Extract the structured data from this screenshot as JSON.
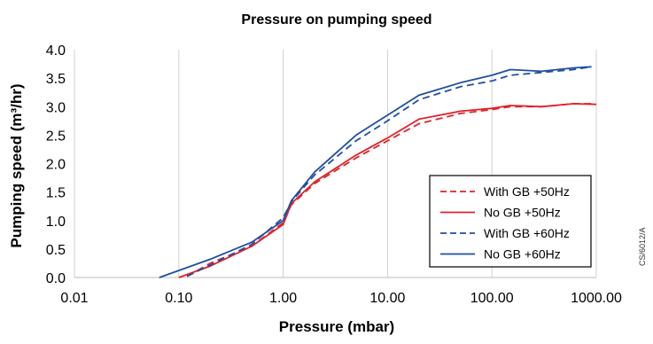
{
  "chart_data": {
    "type": "line",
    "title": "Pressure on pumping speed",
    "xlabel": "Pressure (mbar)",
    "ylabel": "Pumping speed (m³/hr)",
    "x_scale": "log",
    "xlim": [
      0.01,
      1000
    ],
    "ylim": [
      0,
      4
    ],
    "x_ticks": [
      "0.01",
      "0.10",
      "1.00",
      "10.00",
      "100.00",
      "1000.00"
    ],
    "y_ticks": [
      "0.0",
      "0.5",
      "1.0",
      "1.5",
      "2.0",
      "2.5",
      "3.0",
      "3.5",
      "4.0"
    ],
    "grid": "vertical",
    "legend_position": "right",
    "series": [
      {
        "name": "With GB +50Hz",
        "color": "#e0222a",
        "dash": "dashed",
        "points": [
          [
            0.12,
            0.02
          ],
          [
            0.2,
            0.25
          ],
          [
            0.5,
            0.55
          ],
          [
            1.0,
            0.96
          ],
          [
            1.2,
            1.28
          ],
          [
            2,
            1.65
          ],
          [
            5,
            2.1
          ],
          [
            10,
            2.4
          ],
          [
            20,
            2.7
          ],
          [
            50,
            2.88
          ],
          [
            100,
            2.95
          ],
          [
            150,
            3.0
          ],
          [
            300,
            3.0
          ],
          [
            600,
            3.05
          ],
          [
            900,
            3.05
          ]
        ]
      },
      {
        "name": "No GB +50Hz",
        "color": "#e0222a",
        "dash": "solid",
        "points": [
          [
            0.1,
            0.0
          ],
          [
            0.2,
            0.2
          ],
          [
            0.5,
            0.55
          ],
          [
            1.0,
            0.93
          ],
          [
            1.2,
            1.3
          ],
          [
            2,
            1.68
          ],
          [
            5,
            2.15
          ],
          [
            10,
            2.45
          ],
          [
            20,
            2.78
          ],
          [
            50,
            2.92
          ],
          [
            100,
            2.97
          ],
          [
            150,
            3.02
          ],
          [
            300,
            3.0
          ],
          [
            600,
            3.05
          ],
          [
            1000,
            3.04
          ]
        ]
      },
      {
        "name": "With GB +60Hz",
        "color": "#1f4fa0",
        "dash": "dashed",
        "points": [
          [
            0.12,
            0.02
          ],
          [
            0.2,
            0.22
          ],
          [
            0.5,
            0.58
          ],
          [
            1.0,
            1.05
          ],
          [
            1.2,
            1.33
          ],
          [
            2,
            1.8
          ],
          [
            5,
            2.4
          ],
          [
            10,
            2.75
          ],
          [
            20,
            3.12
          ],
          [
            50,
            3.35
          ],
          [
            100,
            3.45
          ],
          [
            150,
            3.55
          ],
          [
            300,
            3.6
          ],
          [
            600,
            3.65
          ],
          [
            900,
            3.7
          ]
        ]
      },
      {
        "name": "No GB +60Hz",
        "color": "#1f4fa0",
        "dash": "solid",
        "points": [
          [
            0.065,
            0.0
          ],
          [
            0.2,
            0.32
          ],
          [
            0.5,
            0.62
          ],
          [
            1.0,
            1.0
          ],
          [
            1.2,
            1.35
          ],
          [
            2,
            1.85
          ],
          [
            5,
            2.5
          ],
          [
            10,
            2.85
          ],
          [
            20,
            3.2
          ],
          [
            50,
            3.42
          ],
          [
            100,
            3.55
          ],
          [
            150,
            3.65
          ],
          [
            300,
            3.62
          ],
          [
            600,
            3.68
          ],
          [
            900,
            3.7
          ]
        ]
      }
    ]
  },
  "watermark": "CS/6012/A"
}
